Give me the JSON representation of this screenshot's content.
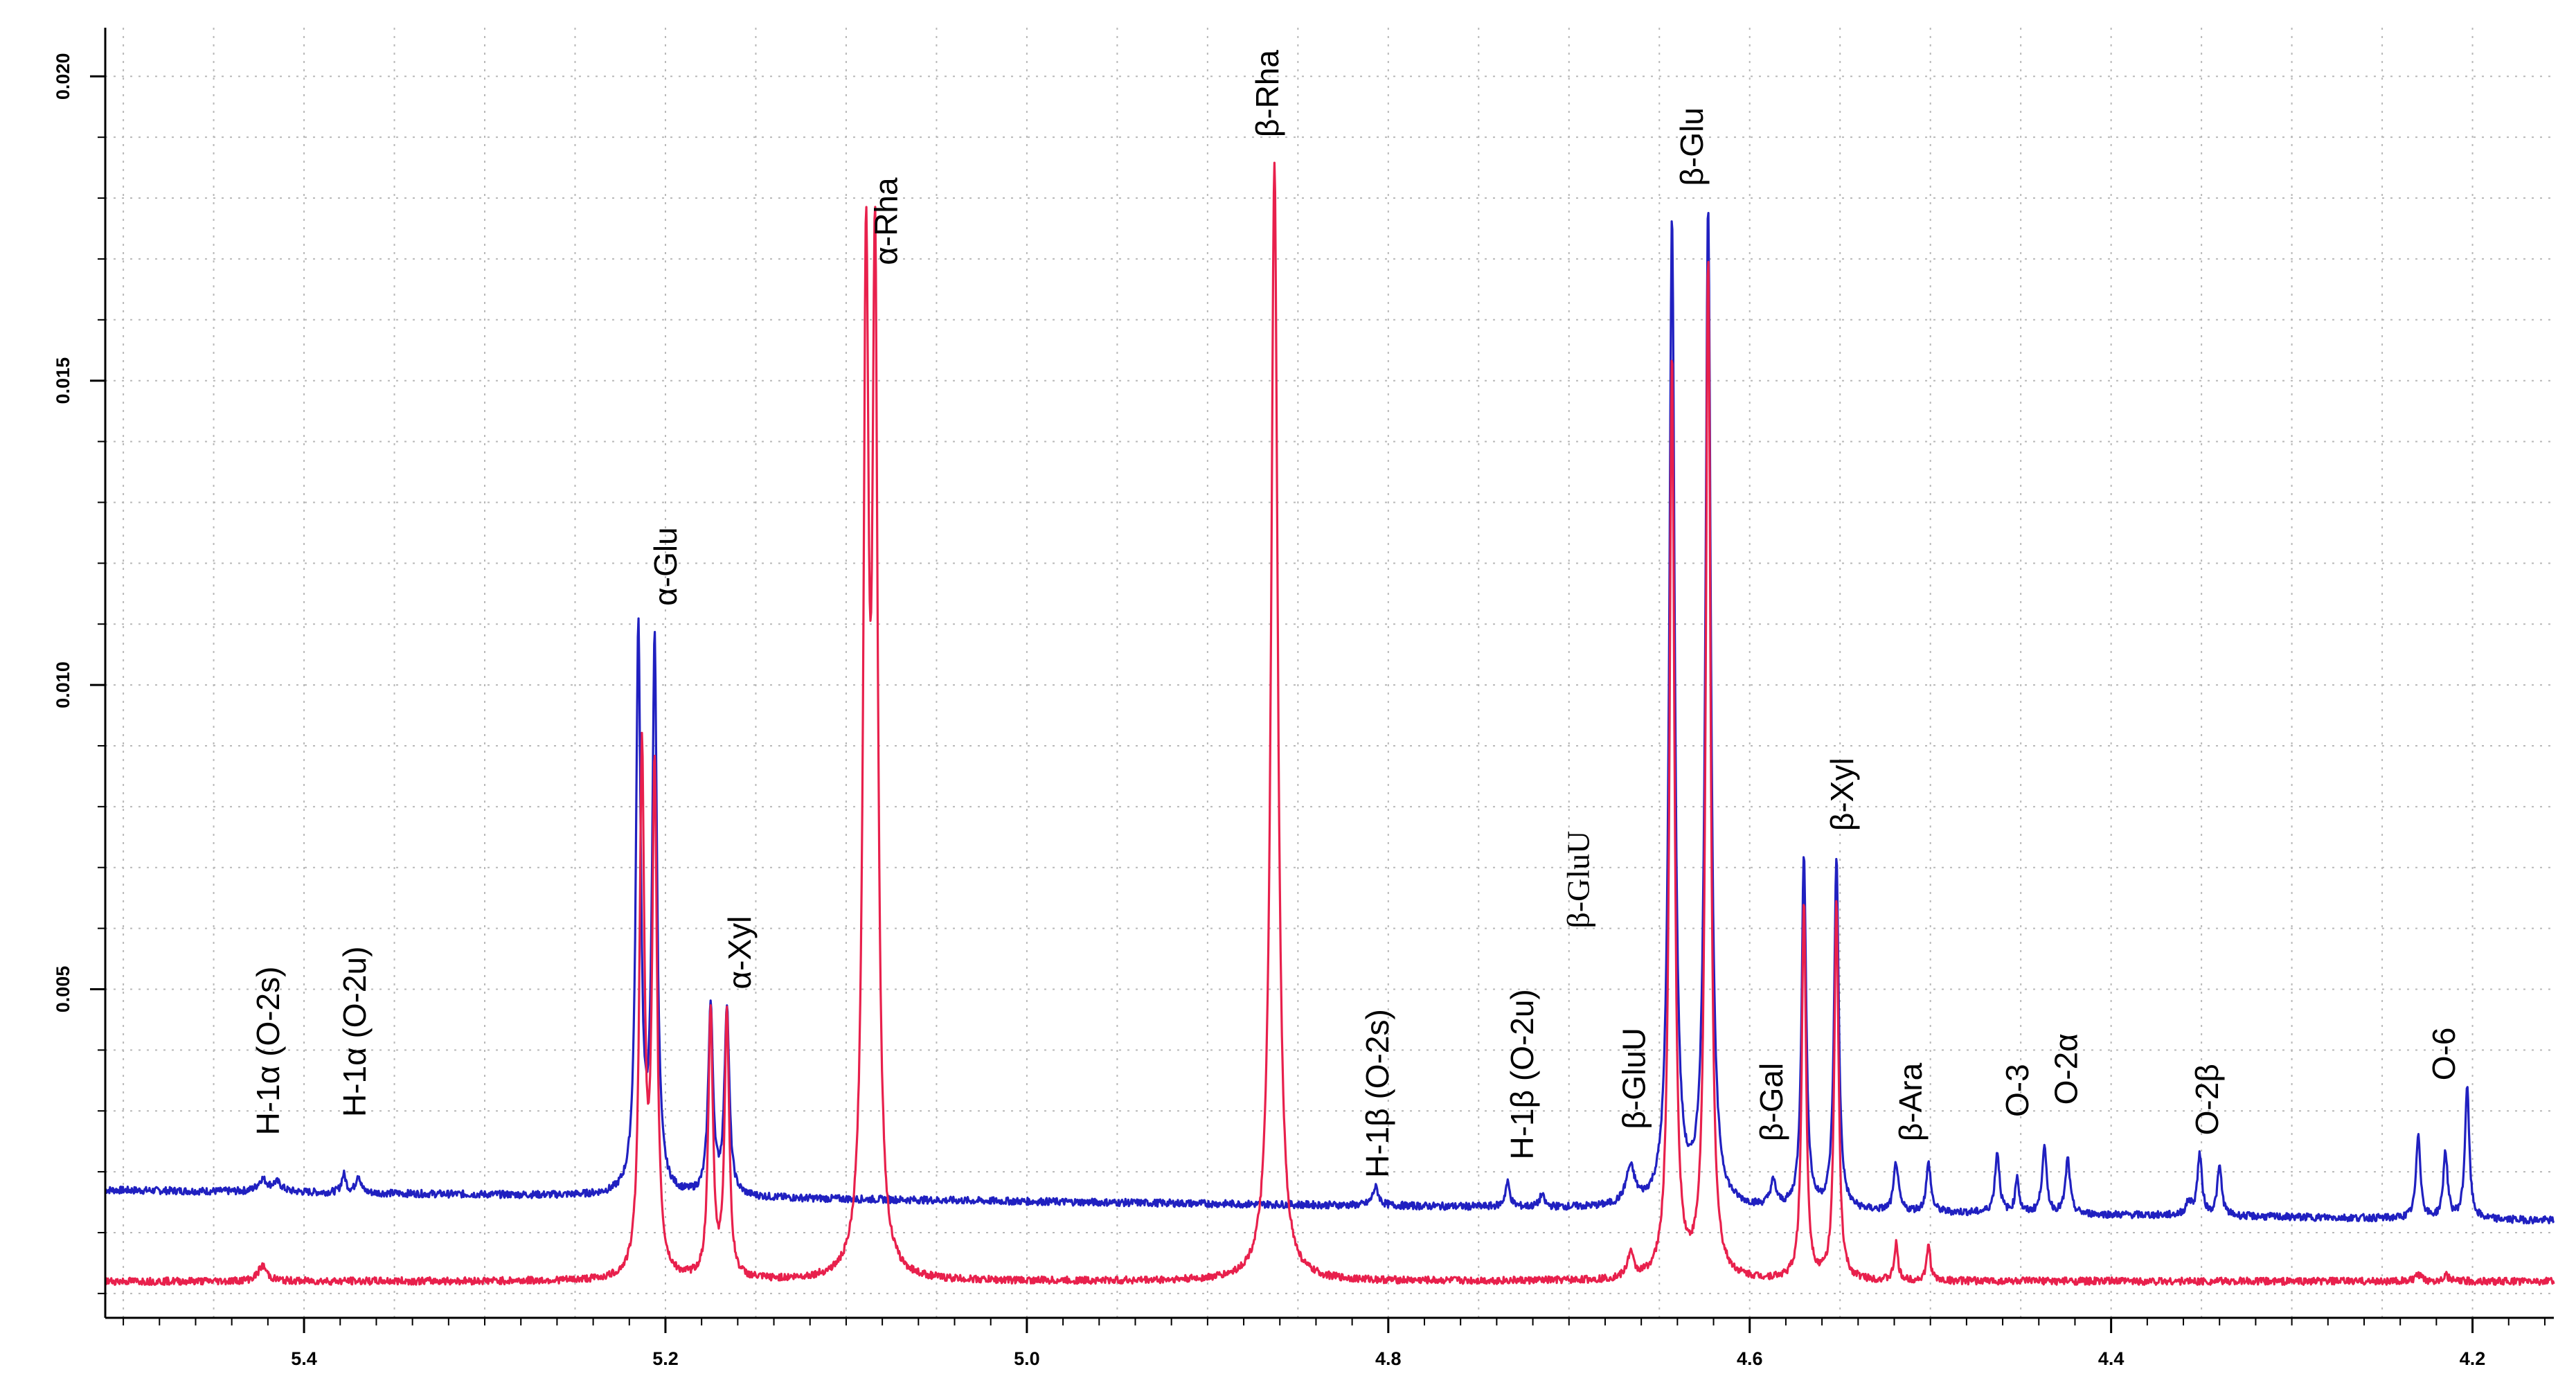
{
  "chart_data": {
    "type": "line",
    "title": "",
    "xlabel": "",
    "ylabel": "",
    "xlim": [
      5.51,
      4.155
    ],
    "ylim": [
      -0.0004,
      0.0208
    ],
    "x_ticks": [
      {
        "value": 5.4,
        "label": "5.4"
      },
      {
        "value": 5.2,
        "label": "5.2"
      },
      {
        "value": 5.0,
        "label": "5.0"
      },
      {
        "value": 4.8,
        "label": "4.8"
      },
      {
        "value": 4.6,
        "label": "4.6"
      },
      {
        "value": 4.4,
        "label": "4.4"
      },
      {
        "value": 4.2,
        "label": "4.2"
      }
    ],
    "y_ticks": [
      {
        "value": 0.005,
        "label": "0.005"
      },
      {
        "value": 0.01,
        "label": "0.010"
      },
      {
        "value": 0.015,
        "label": "0.015"
      },
      {
        "value": 0.02,
        "label": "0.020"
      }
    ],
    "grid": true,
    "series": [
      {
        "name": "blue spectrum",
        "color": "#2020c0",
        "baseline_start": 0.0017,
        "baseline_end": 0.0012,
        "peaks": [
          [
            5.423,
            0.0002,
            0.003
          ],
          [
            5.415,
            0.00015,
            0.003
          ],
          [
            5.378,
            0.0003,
            0.0015
          ],
          [
            5.37,
            0.0003,
            0.0015
          ],
          [
            5.215,
            0.0092,
            0.0016
          ],
          [
            5.206,
            0.009,
            0.0016
          ],
          [
            5.175,
            0.0031,
            0.0016
          ],
          [
            5.166,
            0.0031,
            0.0016
          ],
          [
            4.807,
            0.0003,
            0.002
          ],
          [
            4.734,
            0.0004,
            0.0015
          ],
          [
            4.715,
            0.0002,
            0.0015
          ],
          [
            4.666,
            0.0006,
            0.003
          ],
          [
            4.643,
            0.0162,
            0.0018
          ],
          [
            4.623,
            0.0164,
            0.0018
          ],
          [
            4.587,
            0.0004,
            0.002
          ],
          [
            4.57,
            0.0058,
            0.0015
          ],
          [
            4.552,
            0.0058,
            0.0015
          ],
          [
            4.519,
            0.0008,
            0.0015
          ],
          [
            4.501,
            0.0008,
            0.0015
          ],
          [
            4.463,
            0.001,
            0.0015
          ],
          [
            4.452,
            0.0006,
            0.0012
          ],
          [
            4.437,
            0.0011,
            0.0015
          ],
          [
            4.424,
            0.0009,
            0.0015
          ],
          [
            4.357,
            0.0002,
            0.002
          ],
          [
            4.351,
            0.001,
            0.0015
          ],
          [
            4.34,
            0.0008,
            0.0015
          ],
          [
            4.23,
            0.0014,
            0.0014
          ],
          [
            4.215,
            0.0011,
            0.0014
          ],
          [
            4.203,
            0.0022,
            0.0014
          ]
        ]
      },
      {
        "name": "red spectrum",
        "color": "#e8204c",
        "baseline_start": 0.0002,
        "baseline_end": 0.0002,
        "peaks": [
          [
            5.423,
            0.00025,
            0.003
          ],
          [
            5.213,
            0.0086,
            0.0016
          ],
          [
            5.206,
            0.0082,
            0.0016
          ],
          [
            5.175,
            0.0044,
            0.0015
          ],
          [
            5.166,
            0.0044,
            0.0015
          ],
          [
            5.089,
            0.0159,
            0.0018
          ],
          [
            5.084,
            0.0159,
            0.0018
          ],
          [
            4.863,
            0.0184,
            0.0022
          ],
          [
            4.666,
            0.0004,
            0.002
          ],
          [
            4.643,
            0.0152,
            0.0016
          ],
          [
            4.623,
            0.0168,
            0.0016
          ],
          [
            4.57,
            0.0062,
            0.0014
          ],
          [
            4.552,
            0.0062,
            0.0014
          ],
          [
            4.519,
            0.0006,
            0.0012
          ],
          [
            4.501,
            0.0006,
            0.0012
          ],
          [
            4.23,
            0.0001,
            0.002
          ],
          [
            4.215,
            0.0001,
            0.002
          ]
        ]
      }
    ],
    "annotations": [
      {
        "text": "H-1α (O-2s)",
        "x": 5.42,
        "y": 0.0026,
        "font": "sans"
      },
      {
        "text": "H-1α (O-2u)",
        "x": 5.372,
        "y": 0.0029,
        "font": "sans"
      },
      {
        "text": "α-Glu",
        "x": 5.2,
        "y": 0.0113,
        "font": "sans"
      },
      {
        "text": "α-Xyl",
        "x": 5.159,
        "y": 0.005,
        "font": "sans"
      },
      {
        "text": "α-Rha",
        "x": 5.078,
        "y": 0.0169,
        "font": "sans"
      },
      {
        "text": "β-Rha",
        "x": 4.867,
        "y": 0.019,
        "font": "sans"
      },
      {
        "text": "H-1β (O-2s)",
        "x": 4.806,
        "y": 0.0019,
        "font": "sans"
      },
      {
        "text": "H-1β (O-2u)",
        "x": 4.726,
        "y": 0.0022,
        "font": "sans"
      },
      {
        "text": "β-GluU",
        "x": 4.695,
        "y": 0.006,
        "font": "serif"
      },
      {
        "text": "β-GluU",
        "x": 4.664,
        "y": 0.0027,
        "font": "sans"
      },
      {
        "text": "β-Glu",
        "x": 4.632,
        "y": 0.0182,
        "font": "sans"
      },
      {
        "text": "β-Gal",
        "x": 4.588,
        "y": 0.0025,
        "font": "sans"
      },
      {
        "text": "β-Xyl",
        "x": 4.549,
        "y": 0.0076,
        "font": "sans"
      },
      {
        "text": "β-Ara",
        "x": 4.511,
        "y": 0.0025,
        "font": "sans"
      },
      {
        "text": "O-3",
        "x": 4.452,
        "y": 0.0029,
        "font": "sans"
      },
      {
        "text": "O-2α",
        "x": 4.425,
        "y": 0.0031,
        "font": "sans"
      },
      {
        "text": "O-2β",
        "x": 4.347,
        "y": 0.0026,
        "font": "sans"
      },
      {
        "text": "O-6",
        "x": 4.216,
        "y": 0.0035,
        "font": "sans"
      }
    ]
  }
}
